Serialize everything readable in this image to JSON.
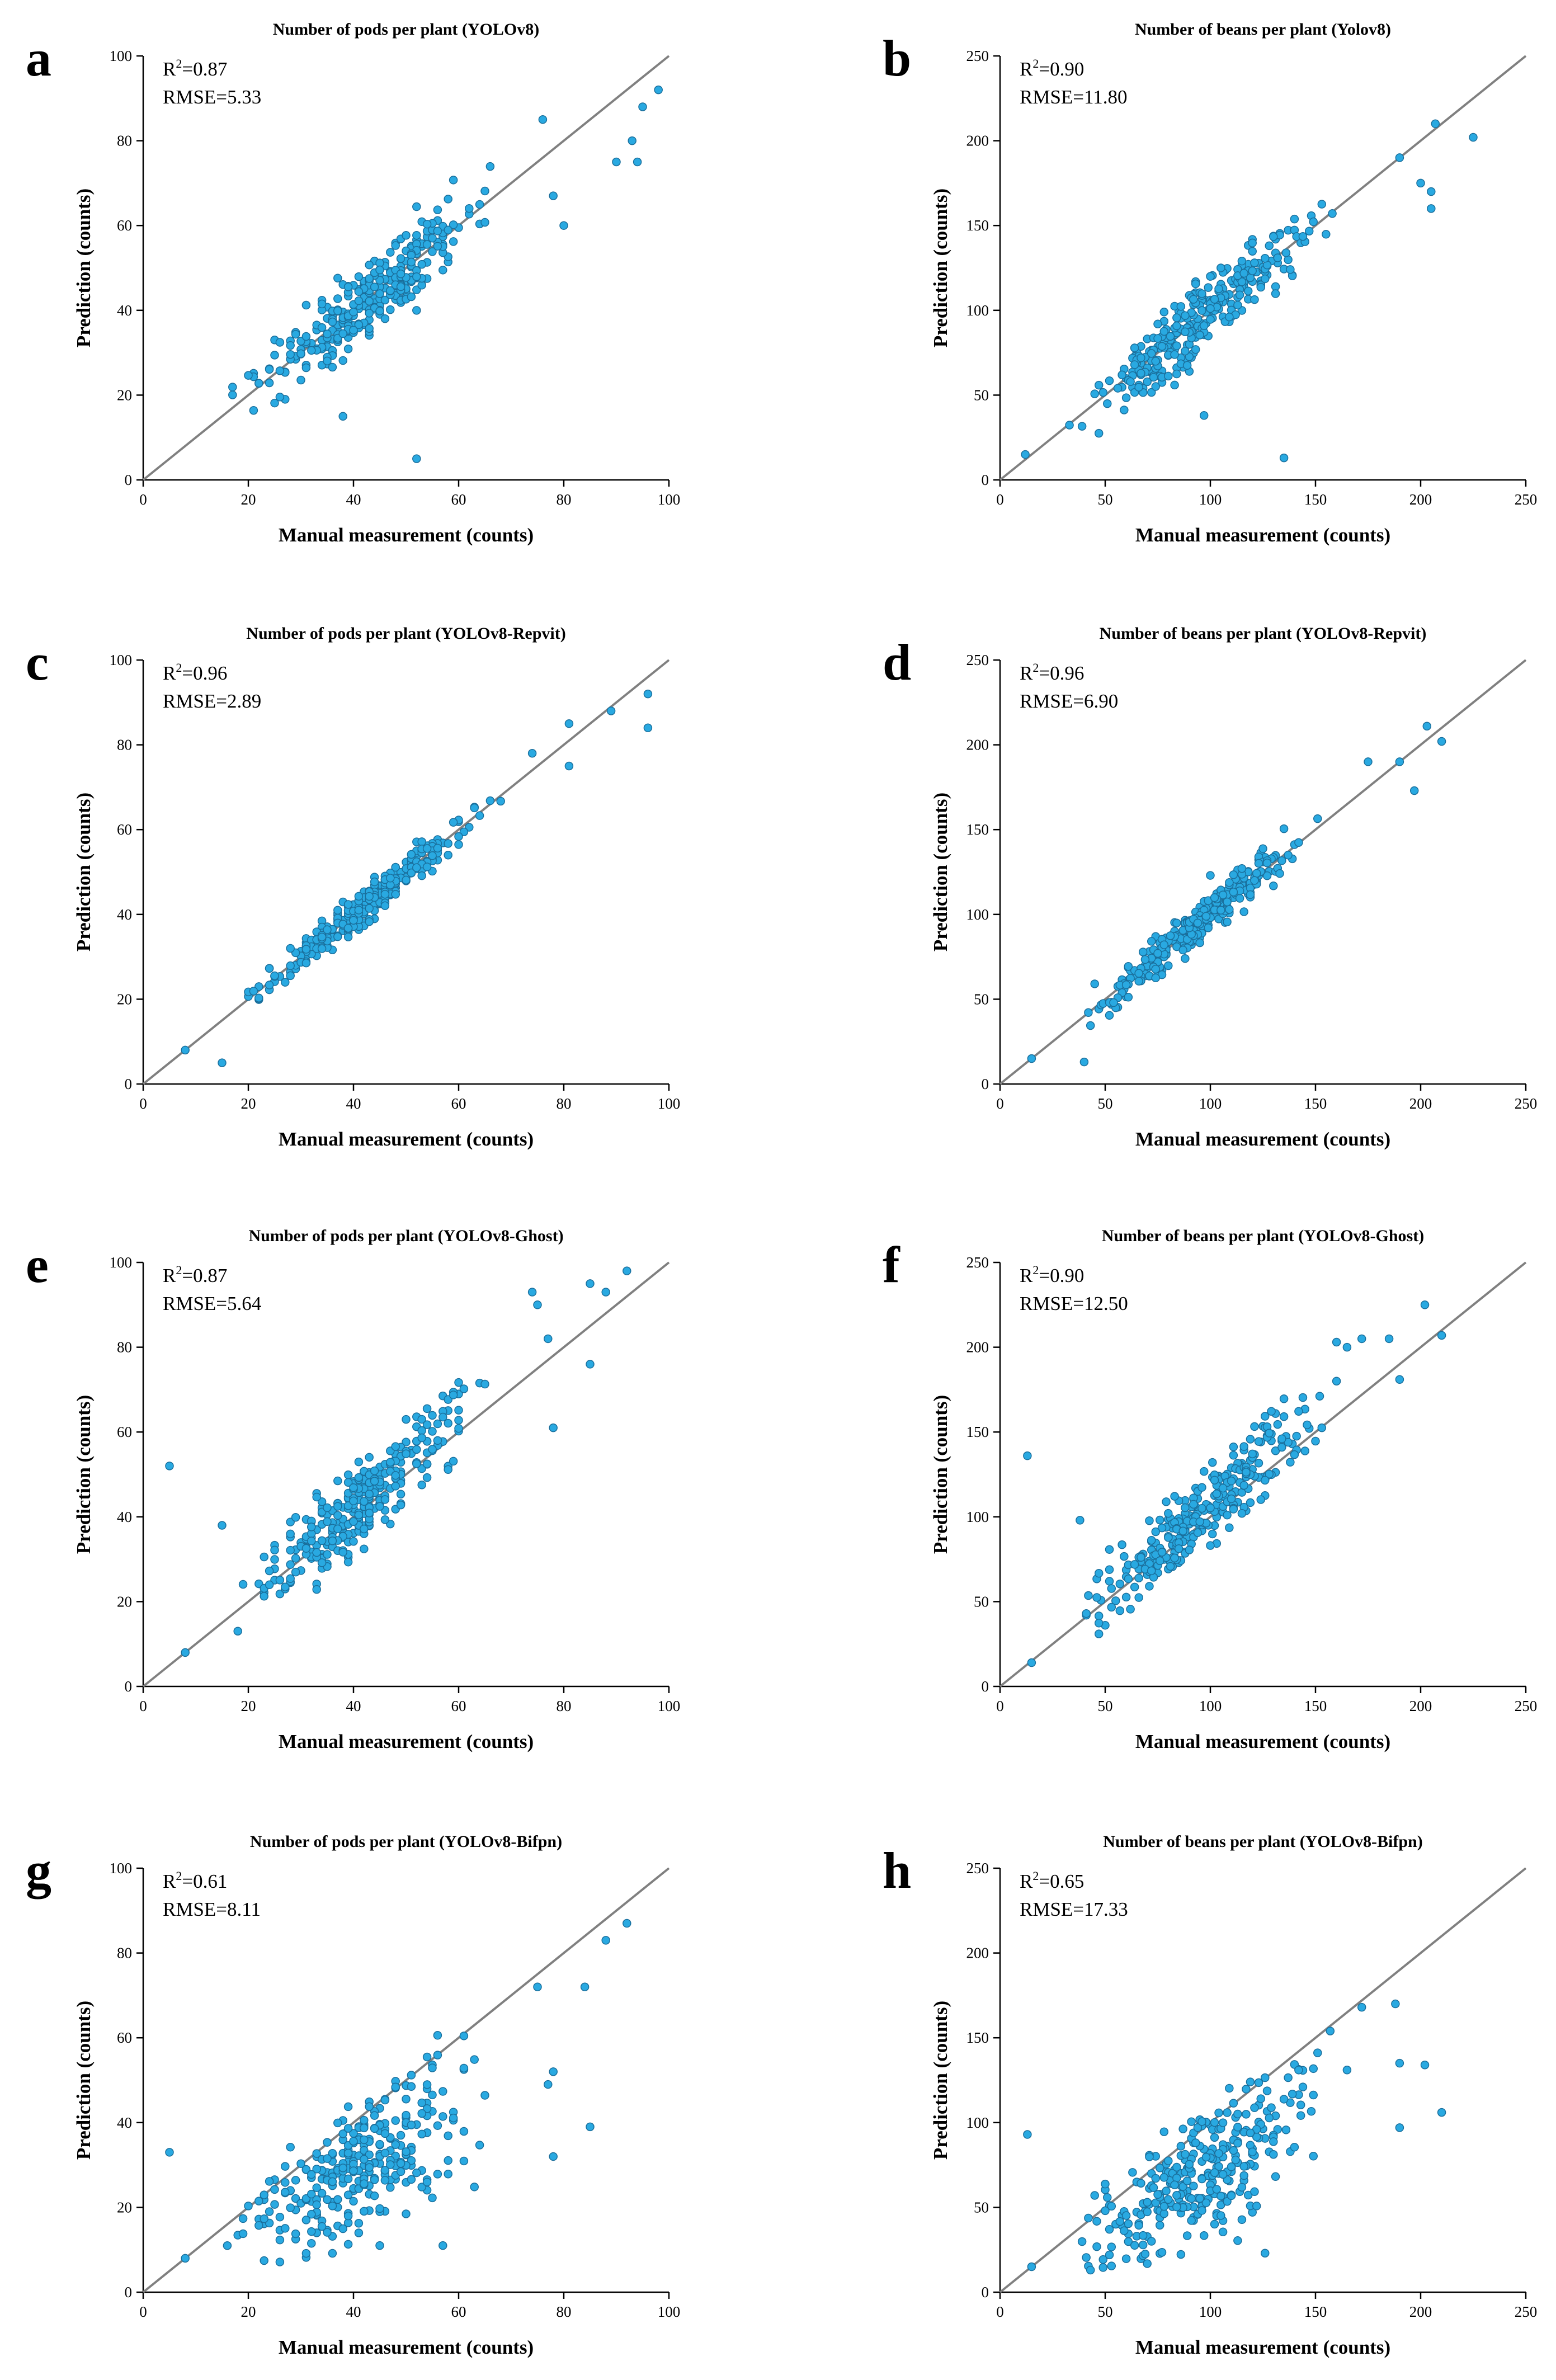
{
  "chart_data": [
    {
      "panel": "a",
      "type": "scatter",
      "title": "Number of pods per plant (YOLOv8)",
      "xlabel": "Manual measurement (counts)",
      "ylabel": "Prediction (counts)",
      "xlim": [
        0,
        100
      ],
      "ylim": [
        0,
        100
      ],
      "ticks": [
        0,
        20,
        40,
        60,
        80,
        100
      ],
      "xtick_labels": [
        "0",
        "20",
        "40",
        "60",
        "80",
        "100"
      ],
      "ytick_labels": [
        "0",
        "20",
        "40",
        "60",
        "80",
        "100"
      ],
      "r2_label": "R",
      "r2_text": "=0.87",
      "rmse_text": "RMSE=5.33",
      "fit_line": [
        [
          0,
          0
        ],
        [
          100,
          100
        ]
      ],
      "spread": 4.5,
      "bias": 0,
      "outliers": [
        [
          38,
          15
        ],
        [
          52,
          5
        ],
        [
          76,
          85
        ],
        [
          95,
          88
        ],
        [
          98,
          92
        ],
        [
          94,
          75
        ],
        [
          90,
          75
        ],
        [
          93,
          80
        ],
        [
          78,
          67
        ],
        [
          80,
          60
        ]
      ]
    },
    {
      "panel": "b",
      "type": "scatter",
      "title": "Number of beans per plant (Yolov8)",
      "xlabel": "Manual measurement (counts)",
      "ylabel": "Prediction (counts)",
      "xlim": [
        0,
        250
      ],
      "ylim": [
        0,
        250
      ],
      "ticks": [
        0,
        50,
        100,
        150,
        200,
        250
      ],
      "xtick_labels": [
        "0",
        "50",
        "100",
        "150",
        "200",
        "250"
      ],
      "ytick_labels": [
        "0",
        "50",
        "100",
        "150",
        "200",
        "250"
      ],
      "r2_label": "R",
      "r2_text": "=0.90",
      "rmse_text": "RMSE=11.80",
      "fit_line": [
        [
          0,
          0
        ],
        [
          250,
          250
        ]
      ],
      "spread": 10,
      "bias": 0,
      "outliers": [
        [
          97,
          38
        ],
        [
          135,
          13
        ],
        [
          207,
          210
        ],
        [
          225,
          202
        ],
        [
          200,
          175
        ],
        [
          205,
          170
        ],
        [
          205,
          160
        ],
        [
          190,
          190
        ],
        [
          12,
          15
        ],
        [
          100,
          120
        ],
        [
          105,
          125
        ]
      ]
    },
    {
      "panel": "c",
      "type": "scatter",
      "title": "Number of pods per plant (YOLOv8-Repvit)",
      "xlabel": "Manual measurement (counts)",
      "ylabel": "Prediction (counts)",
      "xlim": [
        0,
        100
      ],
      "ylim": [
        0,
        100
      ],
      "ticks": [
        0,
        20,
        40,
        60,
        80,
        100
      ],
      "xtick_labels": [
        "0",
        "20",
        "40",
        "60",
        "80",
        "100"
      ],
      "ytick_labels": [
        "0",
        "20",
        "40",
        "60",
        "80",
        "100"
      ],
      "r2_label": "R",
      "r2_text": "=0.96",
      "rmse_text": "RMSE=2.89",
      "fit_line": [
        [
          0,
          0
        ],
        [
          100,
          100
        ]
      ],
      "spread": 2.2,
      "bias": 0,
      "outliers": [
        [
          15,
          5
        ],
        [
          8,
          8
        ],
        [
          96,
          92
        ],
        [
          96,
          84
        ],
        [
          89,
          88
        ],
        [
          81,
          85
        ],
        [
          81,
          75
        ],
        [
          74,
          78
        ]
      ]
    },
    {
      "panel": "d",
      "type": "scatter",
      "title": "Number of beans per plant (YOLOv8-Repvit)",
      "xlabel": "Manual measurement (counts)",
      "ylabel": "Prediction (counts)",
      "xlim": [
        0,
        250
      ],
      "ylim": [
        0,
        250
      ],
      "ticks": [
        0,
        50,
        100,
        150,
        200,
        250
      ],
      "xtick_labels": [
        "0",
        "50",
        "100",
        "150",
        "200",
        "250"
      ],
      "ytick_labels": [
        "0",
        "50",
        "100",
        "150",
        "200",
        "250"
      ],
      "r2_label": "R",
      "r2_text": "=0.96",
      "rmse_text": "RMSE=6.90",
      "fit_line": [
        [
          0,
          0
        ],
        [
          250,
          250
        ]
      ],
      "spread": 6,
      "bias": 0,
      "outliers": [
        [
          40,
          13
        ],
        [
          15,
          15
        ],
        [
          203,
          211
        ],
        [
          210,
          202
        ],
        [
          197,
          173
        ],
        [
          175,
          190
        ],
        [
          190,
          190
        ],
        [
          100,
          123
        ]
      ]
    },
    {
      "panel": "e",
      "type": "scatter",
      "title": "Number of pods per plant (YOLOv8-Ghost)",
      "xlabel": "Manual measurement (counts)",
      "ylabel": "Prediction (counts)",
      "xlim": [
        0,
        100
      ],
      "ylim": [
        0,
        100
      ],
      "ticks": [
        0,
        20,
        40,
        60,
        80,
        100
      ],
      "xtick_labels": [
        "0",
        "20",
        "40",
        "60",
        "80",
        "100"
      ],
      "ytick_labels": [
        "0",
        "20",
        "40",
        "60",
        "80",
        "100"
      ],
      "r2_label": "R",
      "r2_text": "=0.87",
      "rmse_text": "RMSE=5.64",
      "fit_line": [
        [
          0,
          0
        ],
        [
          100,
          100
        ]
      ],
      "spread": 5,
      "bias": 2.5,
      "outliers": [
        [
          5,
          52
        ],
        [
          15,
          38
        ],
        [
          8,
          8
        ],
        [
          92,
          98
        ],
        [
          85,
          95
        ],
        [
          88,
          93
        ],
        [
          74,
          93
        ],
        [
          75,
          90
        ],
        [
          85,
          76
        ],
        [
          78,
          61
        ],
        [
          77,
          82
        ]
      ]
    },
    {
      "panel": "f",
      "type": "scatter",
      "title": "Number of beans per plant (YOLOv8-Ghost)",
      "xlabel": "Manual measurement (counts)",
      "ylabel": "Prediction (counts)",
      "xlim": [
        0,
        250
      ],
      "ylim": [
        0,
        250
      ],
      "ticks": [
        0,
        50,
        100,
        150,
        200,
        250
      ],
      "xtick_labels": [
        "0",
        "50",
        "100",
        "150",
        "200",
        "250"
      ],
      "ytick_labels": [
        "0",
        "50",
        "100",
        "150",
        "200",
        "250"
      ],
      "r2_label": "R",
      "r2_text": "=0.90",
      "rmse_text": "RMSE=12.50",
      "fit_line": [
        [
          0,
          0
        ],
        [
          250,
          250
        ]
      ],
      "spread": 11,
      "bias": 9,
      "outliers": [
        [
          13,
          136
        ],
        [
          38,
          98
        ],
        [
          15,
          14
        ],
        [
          202,
          225
        ],
        [
          210,
          207
        ],
        [
          190,
          181
        ],
        [
          172,
          205
        ],
        [
          160,
          203
        ],
        [
          165,
          200
        ],
        [
          185,
          205
        ],
        [
          160,
          180
        ]
      ]
    },
    {
      "panel": "g",
      "type": "scatter",
      "title": "Number of pods per plant (YOLOv8-Bifpn)",
      "xlabel": "Manual measurement (counts)",
      "ylabel": "Prediction (counts)",
      "xlim": [
        0,
        100
      ],
      "ylim": [
        0,
        100
      ],
      "ticks": [
        0,
        20,
        40,
        60,
        80,
        100
      ],
      "xtick_labels": [
        "0",
        "20",
        "40",
        "60",
        "80",
        "100"
      ],
      "ytick_labels": [
        "0",
        "20",
        "40",
        "60",
        "80",
        "100"
      ],
      "r2_label": "R",
      "r2_text": "=0.61",
      "rmse_text": "RMSE=8.11",
      "fit_line": [
        [
          0,
          0
        ],
        [
          100,
          100
        ]
      ],
      "spread": 5,
      "bias": -7,
      "outliers": [
        [
          5,
          33
        ],
        [
          8,
          8
        ],
        [
          92,
          87
        ],
        [
          88,
          83
        ],
        [
          84,
          72
        ],
        [
          75,
          72
        ],
        [
          78,
          52
        ],
        [
          77,
          49
        ],
        [
          85,
          39
        ],
        [
          78,
          32
        ],
        [
          57,
          11
        ],
        [
          45,
          11
        ]
      ]
    },
    {
      "panel": "h",
      "type": "scatter",
      "title": "Number of beans per plant (YOLOv8-Bifpn)",
      "xlabel": "Manual measurement (counts)",
      "ylabel": "Prediction (counts)",
      "xlim": [
        0,
        250
      ],
      "ylim": [
        0,
        250
      ],
      "ticks": [
        0,
        50,
        100,
        150,
        200,
        250
      ],
      "xtick_labels": [
        "0",
        "50",
        "100",
        "150",
        "200",
        "250"
      ],
      "ytick_labels": [
        "0",
        "50",
        "100",
        "150",
        "200",
        "250"
      ],
      "r2_label": "R",
      "r2_text": "=0.65",
      "rmse_text": "RMSE=17.33",
      "fit_line": [
        [
          0,
          0
        ],
        [
          250,
          250
        ]
      ],
      "spread": 12,
      "bias": -18,
      "outliers": [
        [
          13,
          93
        ],
        [
          15,
          15
        ],
        [
          210,
          106
        ],
        [
          202,
          134
        ],
        [
          190,
          135
        ],
        [
          188,
          170
        ],
        [
          172,
          168
        ],
        [
          165,
          131
        ],
        [
          190,
          97
        ],
        [
          126,
          23
        ]
      ]
    }
  ]
}
